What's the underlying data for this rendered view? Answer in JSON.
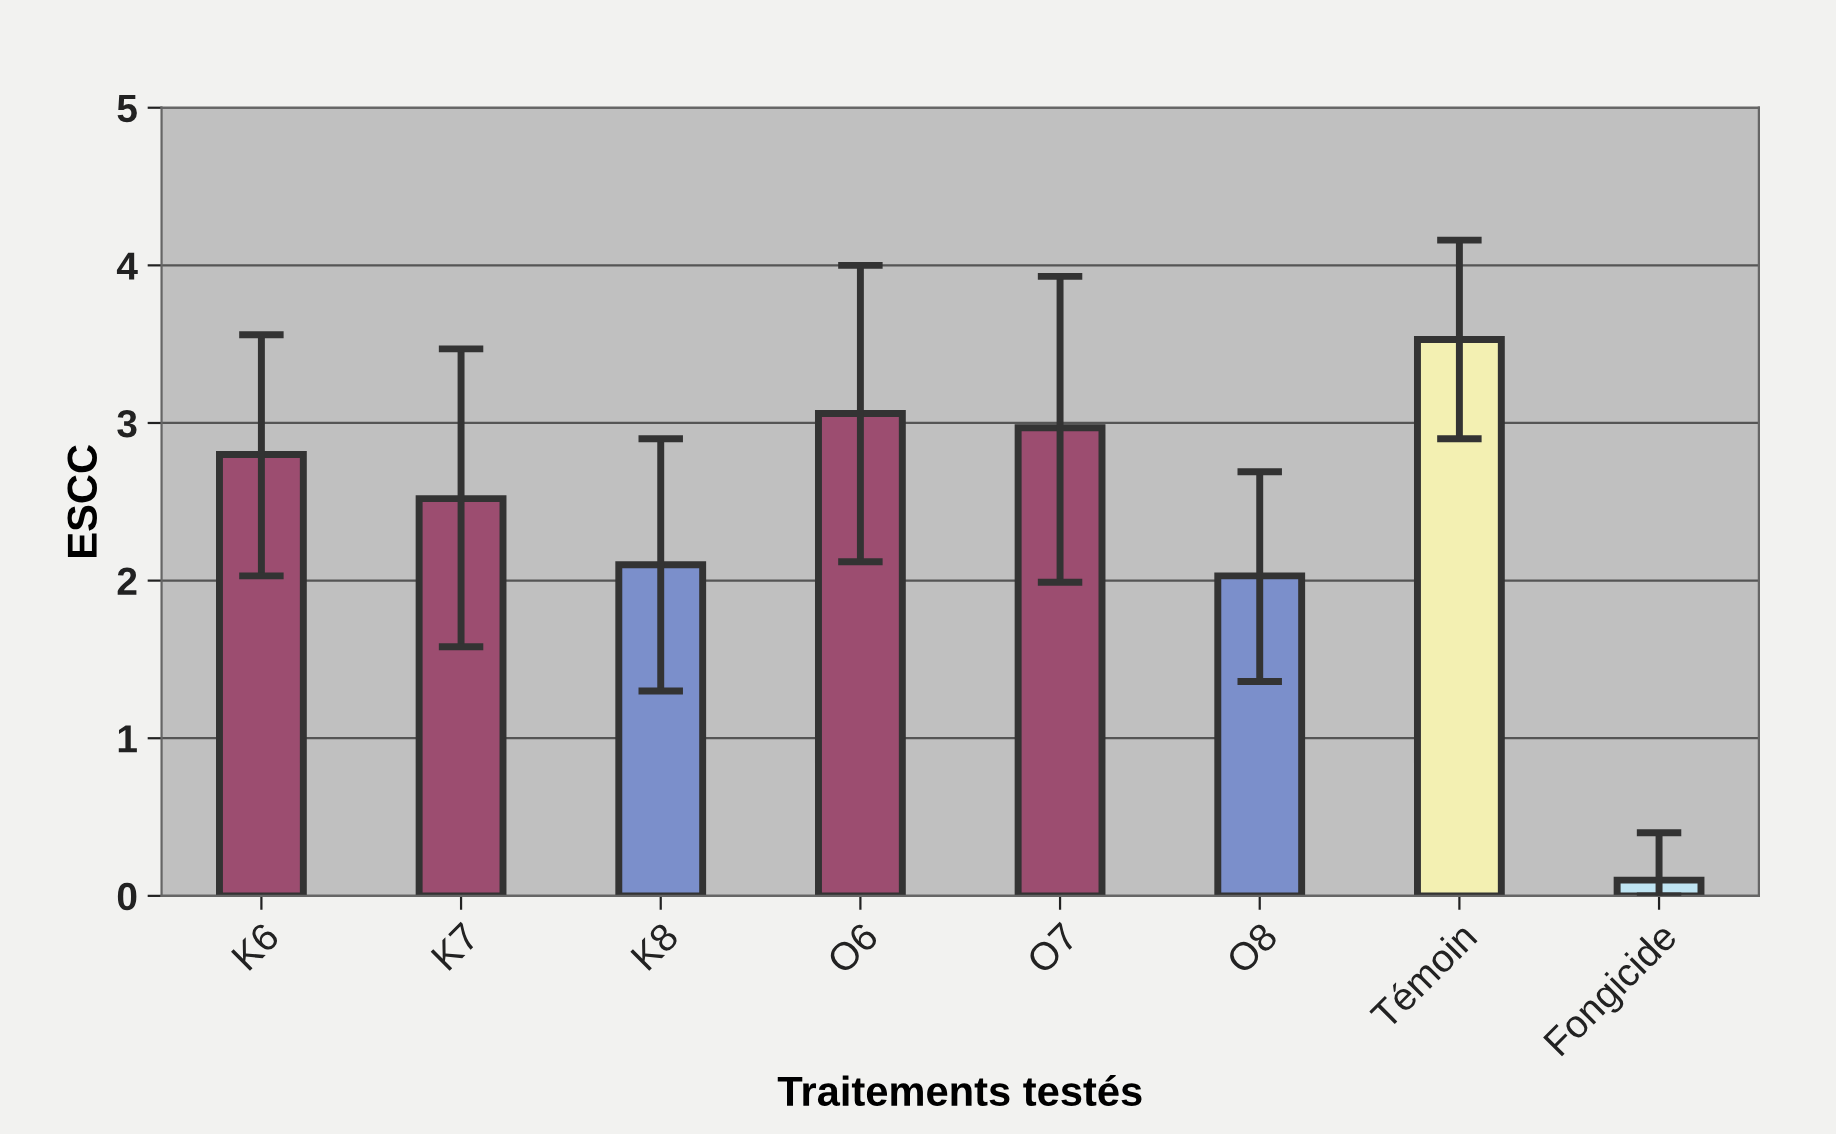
{
  "chart_data": {
    "type": "bar",
    "xlabel": "Traitements testés",
    "ylabel": "ESCC",
    "categories": [
      "K6",
      "K7",
      "K8",
      "O6",
      "O7",
      "O8",
      "Témoin",
      "Fongicide"
    ],
    "values": [
      2.8,
      2.52,
      2.1,
      3.06,
      2.97,
      2.03,
      3.53,
      0.1
    ],
    "colors": [
      "#9c4d70",
      "#9c4d70",
      "#7b8fcb",
      "#9c4d70",
      "#9c4d70",
      "#7b8fcb",
      "#f3f0b2",
      "#bfe4f2"
    ],
    "errors": [
      [
        2.03,
        3.56
      ],
      [
        1.58,
        3.47
      ],
      [
        1.3,
        2.9
      ],
      [
        2.12,
        4.0
      ],
      [
        1.99,
        3.93
      ],
      [
        1.36,
        2.69
      ],
      [
        2.9,
        4.16
      ],
      [
        0.0,
        0.4
      ]
    ],
    "ylim": [
      0,
      5
    ],
    "yticks": [
      0,
      1,
      2,
      3,
      4,
      5
    ],
    "grid": "y"
  }
}
